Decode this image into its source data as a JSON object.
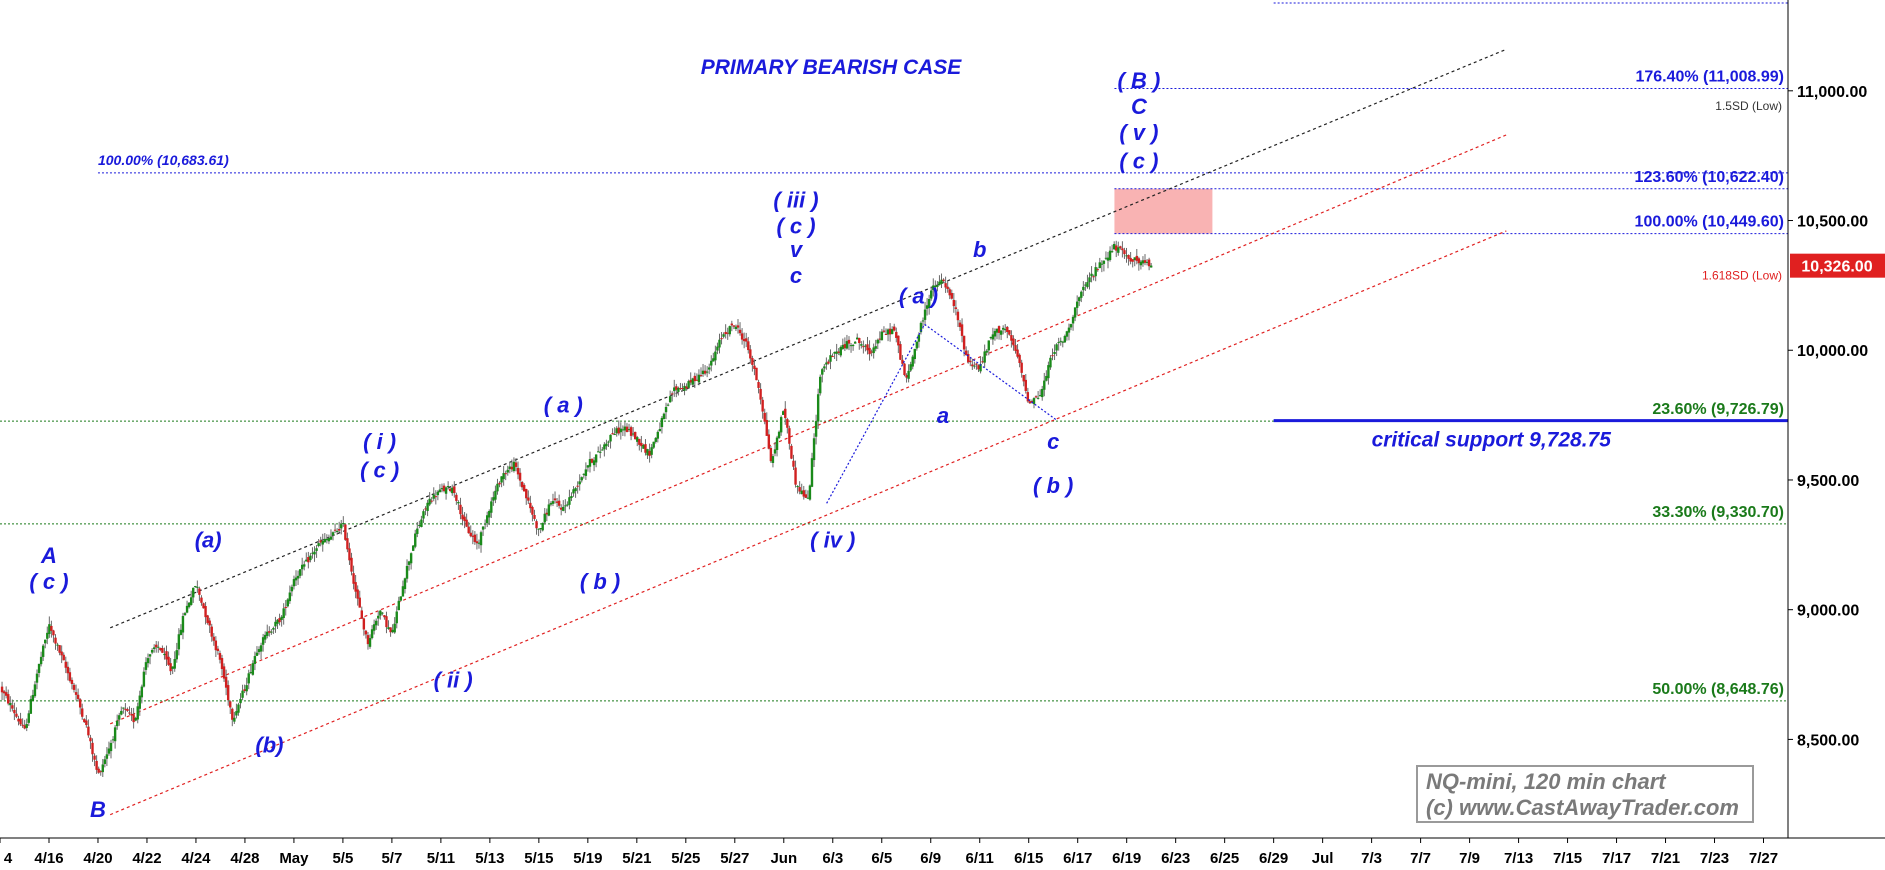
{
  "chart_data": {
    "type": "candlestick",
    "title": "PRIMARY BEARISH CASE",
    "ylim": [
      8120,
      11350
    ],
    "y_ticks": [
      "8,500.00",
      "9,000.00",
      "9,500.00",
      "10,000.00",
      "10,500.00",
      "11,000.00"
    ],
    "y_tick_values": [
      8500,
      9000,
      9500,
      10000,
      10500,
      11000
    ],
    "x_ticks": [
      "4",
      "4/16",
      "4/20",
      "4/22",
      "4/24",
      "4/28",
      "May",
      "5/5",
      "5/7",
      "5/11",
      "5/13",
      "5/15",
      "5/19",
      "5/21",
      "5/25",
      "5/27",
      "Jun",
      "6/3",
      "6/5",
      "6/9",
      "6/11",
      "6/15",
      "6/17",
      "6/19",
      "6/23",
      "6/25",
      "6/29",
      "Jul",
      "7/3",
      "7/7",
      "7/9",
      "7/13",
      "7/15",
      "7/17",
      "7/21",
      "7/23",
      "7/27"
    ],
    "x_tick_index": [
      0,
      4,
      8,
      12,
      16,
      20,
      24,
      28,
      32,
      36,
      40,
      44,
      48,
      52,
      56,
      60,
      64,
      68,
      72,
      76,
      80,
      84,
      88,
      92,
      96,
      100,
      104,
      108,
      112,
      116,
      120,
      124,
      128,
      132,
      136,
      140,
      144
    ],
    "x_range": [
      0,
      146
    ],
    "price_path": [
      [
        0,
        8700
      ],
      [
        1,
        8620
      ],
      [
        2,
        8530
      ],
      [
        3,
        8750
      ],
      [
        4,
        8940
      ],
      [
        5,
        8820
      ],
      [
        6,
        8700
      ],
      [
        7,
        8560
      ],
      [
        8,
        8360
      ],
      [
        9,
        8480
      ],
      [
        10,
        8620
      ],
      [
        11,
        8570
      ],
      [
        12,
        8820
      ],
      [
        13,
        8860
      ],
      [
        14,
        8760
      ],
      [
        15,
        8980
      ],
      [
        16,
        9100
      ],
      [
        17,
        8950
      ],
      [
        18,
        8800
      ],
      [
        19,
        8580
      ],
      [
        20,
        8700
      ],
      [
        21,
        8850
      ],
      [
        22,
        8920
      ],
      [
        23,
        8970
      ],
      [
        24,
        9120
      ],
      [
        25,
        9180
      ],
      [
        26,
        9250
      ],
      [
        27,
        9280
      ],
      [
        28,
        9330
      ],
      [
        29,
        9080
      ],
      [
        30,
        8870
      ],
      [
        31,
        9000
      ],
      [
        32,
        8900
      ],
      [
        33,
        9120
      ],
      [
        34,
        9300
      ],
      [
        35,
        9420
      ],
      [
        36,
        9460
      ],
      [
        37,
        9470
      ],
      [
        38,
        9320
      ],
      [
        39,
        9250
      ],
      [
        40,
        9400
      ],
      [
        41,
        9520
      ],
      [
        42,
        9560
      ],
      [
        43,
        9430
      ],
      [
        44,
        9300
      ],
      [
        45,
        9420
      ],
      [
        46,
        9390
      ],
      [
        47,
        9470
      ],
      [
        48,
        9560
      ],
      [
        49,
        9610
      ],
      [
        50,
        9680
      ],
      [
        51,
        9700
      ],
      [
        52,
        9660
      ],
      [
        53,
        9600
      ],
      [
        54,
        9720
      ],
      [
        55,
        9850
      ],
      [
        56,
        9860
      ],
      [
        57,
        9900
      ],
      [
        58,
        9940
      ],
      [
        59,
        10060
      ],
      [
        60,
        10100
      ],
      [
        61,
        10020
      ],
      [
        62,
        9850
      ],
      [
        63,
        9560
      ],
      [
        64,
        9780
      ],
      [
        65,
        9480
      ],
      [
        66,
        9420
      ],
      [
        67,
        9920
      ],
      [
        68,
        9980
      ],
      [
        69,
        10020
      ],
      [
        70,
        10040
      ],
      [
        71,
        9990
      ],
      [
        72,
        10060
      ],
      [
        73,
        10080
      ],
      [
        74,
        9880
      ],
      [
        75,
        10060
      ],
      [
        76,
        10230
      ],
      [
        77,
        10270
      ],
      [
        78,
        10160
      ],
      [
        79,
        9960
      ],
      [
        80,
        9930
      ],
      [
        81,
        10060
      ],
      [
        82,
        10090
      ],
      [
        83,
        9990
      ],
      [
        84,
        9800
      ],
      [
        85,
        9830
      ],
      [
        86,
        10000
      ],
      [
        87,
        10050
      ],
      [
        88,
        10190
      ],
      [
        89,
        10280
      ],
      [
        90,
        10340
      ],
      [
        91,
        10400
      ],
      [
        92,
        10360
      ],
      [
        93,
        10340
      ],
      [
        94,
        10326
      ]
    ],
    "fib_levels": [
      {
        "label": "176.40% (11,008.99)",
        "value": 11008.99,
        "color": "#1a1adb"
      },
      {
        "label": "123.60% (10,622.40)",
        "value": 10622.4,
        "color": "#1a1adb"
      },
      {
        "label": "100.00% (10,449.60)",
        "value": 10449.6,
        "color": "#1a1adb"
      },
      {
        "label": "23.60% (9,726.79)",
        "value": 9726.79,
        "color": "#1a7a1a"
      },
      {
        "label": "33.30% (9,330.70)",
        "value": 9330.7,
        "color": "#1a7a1a"
      },
      {
        "label": "50.00% (8,648.76)",
        "value": 8648.76,
        "color": "#1a7a1a"
      }
    ],
    "fib_left": {
      "label": "100.00% (10,683.61)",
      "value": 10683.61,
      "color": "#1a1adb"
    },
    "sd_labels": [
      {
        "label": "1.5SD (Low)",
        "value": 10980,
        "color": "#333333"
      },
      {
        "label": "1.618SD (Low)",
        "value": 10326,
        "color": "#e02020"
      }
    ],
    "critical_support": {
      "label": "critical support 9,728.75",
      "value": 9728.75,
      "from_index": 104
    },
    "current_price": {
      "label": "10,326.00",
      "value": 10326,
      "color": "#e02020"
    },
    "target_zone": {
      "from_index": 91,
      "to_index": 99,
      "low": 10449.6,
      "high": 10622.4,
      "color": "#f9b3b3"
    },
    "wave_labels": [
      {
        "text": "A",
        "index": 4,
        "price": 9180
      },
      {
        "text": "( c )",
        "index": 4,
        "price": 9080
      },
      {
        "text": "B",
        "index": 8,
        "price": 8200
      },
      {
        "text": "(a)",
        "index": 17,
        "price": 9240
      },
      {
        "text": "(b)",
        "index": 22,
        "price": 8450
      },
      {
        "text": "( i )",
        "index": 31,
        "price": 9620
      },
      {
        "text": "( c )",
        "index": 31,
        "price": 9510
      },
      {
        "text": "( ii )",
        "index": 37,
        "price": 8700
      },
      {
        "text": "( a )",
        "index": 46,
        "price": 9760
      },
      {
        "text": "( b )",
        "index": 49,
        "price": 9080
      },
      {
        "text": "( iii )",
        "index": 65,
        "price": 10550
      },
      {
        "text": "( c )",
        "index": 65,
        "price": 10450
      },
      {
        "text": "v",
        "index": 65,
        "price": 10360
      },
      {
        "text": "c",
        "index": 65,
        "price": 10260
      },
      {
        "text": "( iv )",
        "index": 68,
        "price": 9240
      },
      {
        "text": "( a )",
        "index": 75,
        "price": 10180
      },
      {
        "text": "a",
        "index": 77,
        "price": 9720
      },
      {
        "text": "b",
        "index": 80,
        "price": 10360
      },
      {
        "text": "c",
        "index": 86,
        "price": 9620
      },
      {
        "text": "( b )",
        "index": 86,
        "price": 9450
      },
      {
        "text": "( c )",
        "index": 93,
        "price": 10700
      },
      {
        "text": "( v )",
        "index": 93,
        "price": 10810
      },
      {
        "text": "C",
        "index": 93,
        "price": 10910
      },
      {
        "text": "( B )",
        "index": 93,
        "price": 11010
      }
    ],
    "channel_lines": [
      {
        "name": "upper-trend",
        "color": "#222222",
        "from": [
          9,
          8930
        ],
        "to": [
          123,
          11160
        ]
      },
      {
        "name": "channel-mid",
        "color": "#e02020",
        "from": [
          9,
          8560
        ],
        "to": [
          123,
          10830
        ]
      },
      {
        "name": "channel-low",
        "color": "#e02020",
        "from": [
          9,
          8210
        ],
        "to": [
          123,
          10460
        ]
      }
    ],
    "swing_lines": [
      {
        "from": [
          67.5,
          9410
        ],
        "to": [
          75.5,
          10100
        ]
      },
      {
        "from": [
          75.5,
          10100
        ],
        "to": [
          86.3,
          9730
        ]
      }
    ]
  },
  "watermark": {
    "line1": "NQ-mini, 120 min chart",
    "line2": "(c) www.CastAwayTrader.com"
  }
}
